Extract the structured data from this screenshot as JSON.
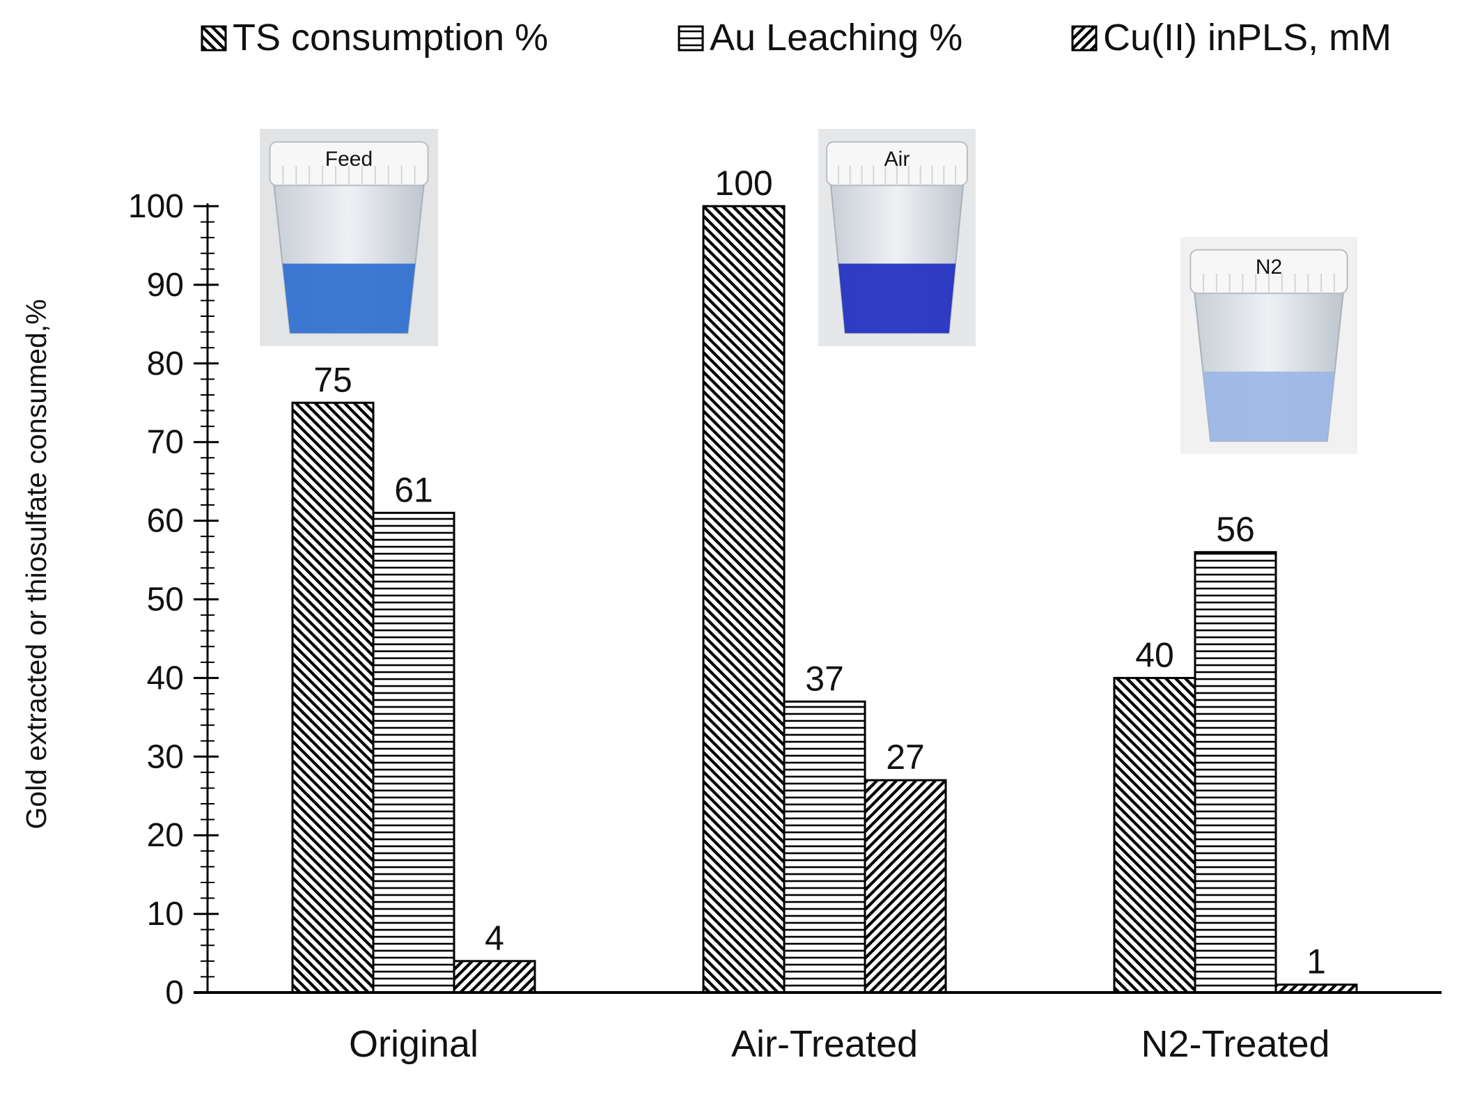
{
  "chart_data": {
    "type": "bar",
    "title": "",
    "xlabel": "",
    "ylabel": "Gold extracted or thiosulfate consumed,%",
    "ylim": [
      0,
      100
    ],
    "yticks": [
      0,
      10,
      20,
      30,
      40,
      50,
      60,
      70,
      80,
      90,
      100
    ],
    "grid": false,
    "legend_position": "top",
    "categories": [
      "Original",
      "Air-Treated",
      "N2-Treated"
    ],
    "series": [
      {
        "name": "TS consumption %",
        "pattern": "diagonal-down",
        "values": [
          75,
          100,
          40
        ]
      },
      {
        "name": "Au Leaching %",
        "pattern": "horizontal",
        "values": [
          61,
          37,
          56
        ]
      },
      {
        "name": "Cu(II) inPLS, mM",
        "pattern": "diagonal-up",
        "values": [
          4,
          27,
          1
        ]
      }
    ],
    "data_labels": [
      [
        "75",
        "100",
        "40"
      ],
      [
        "61",
        "37",
        "56"
      ],
      [
        "4",
        "27",
        "1"
      ]
    ],
    "annotations": [
      {
        "type": "photo",
        "label": "Feed",
        "near_category": "Original",
        "liquid_color": "#2f6fd0"
      },
      {
        "type": "photo",
        "label": "Air",
        "near_category": "Air-Treated",
        "liquid_color": "#1f2fc0"
      },
      {
        "type": "photo",
        "label": "N2",
        "near_category": "N2-Treated",
        "liquid_color": "#9cb6e6"
      }
    ]
  }
}
